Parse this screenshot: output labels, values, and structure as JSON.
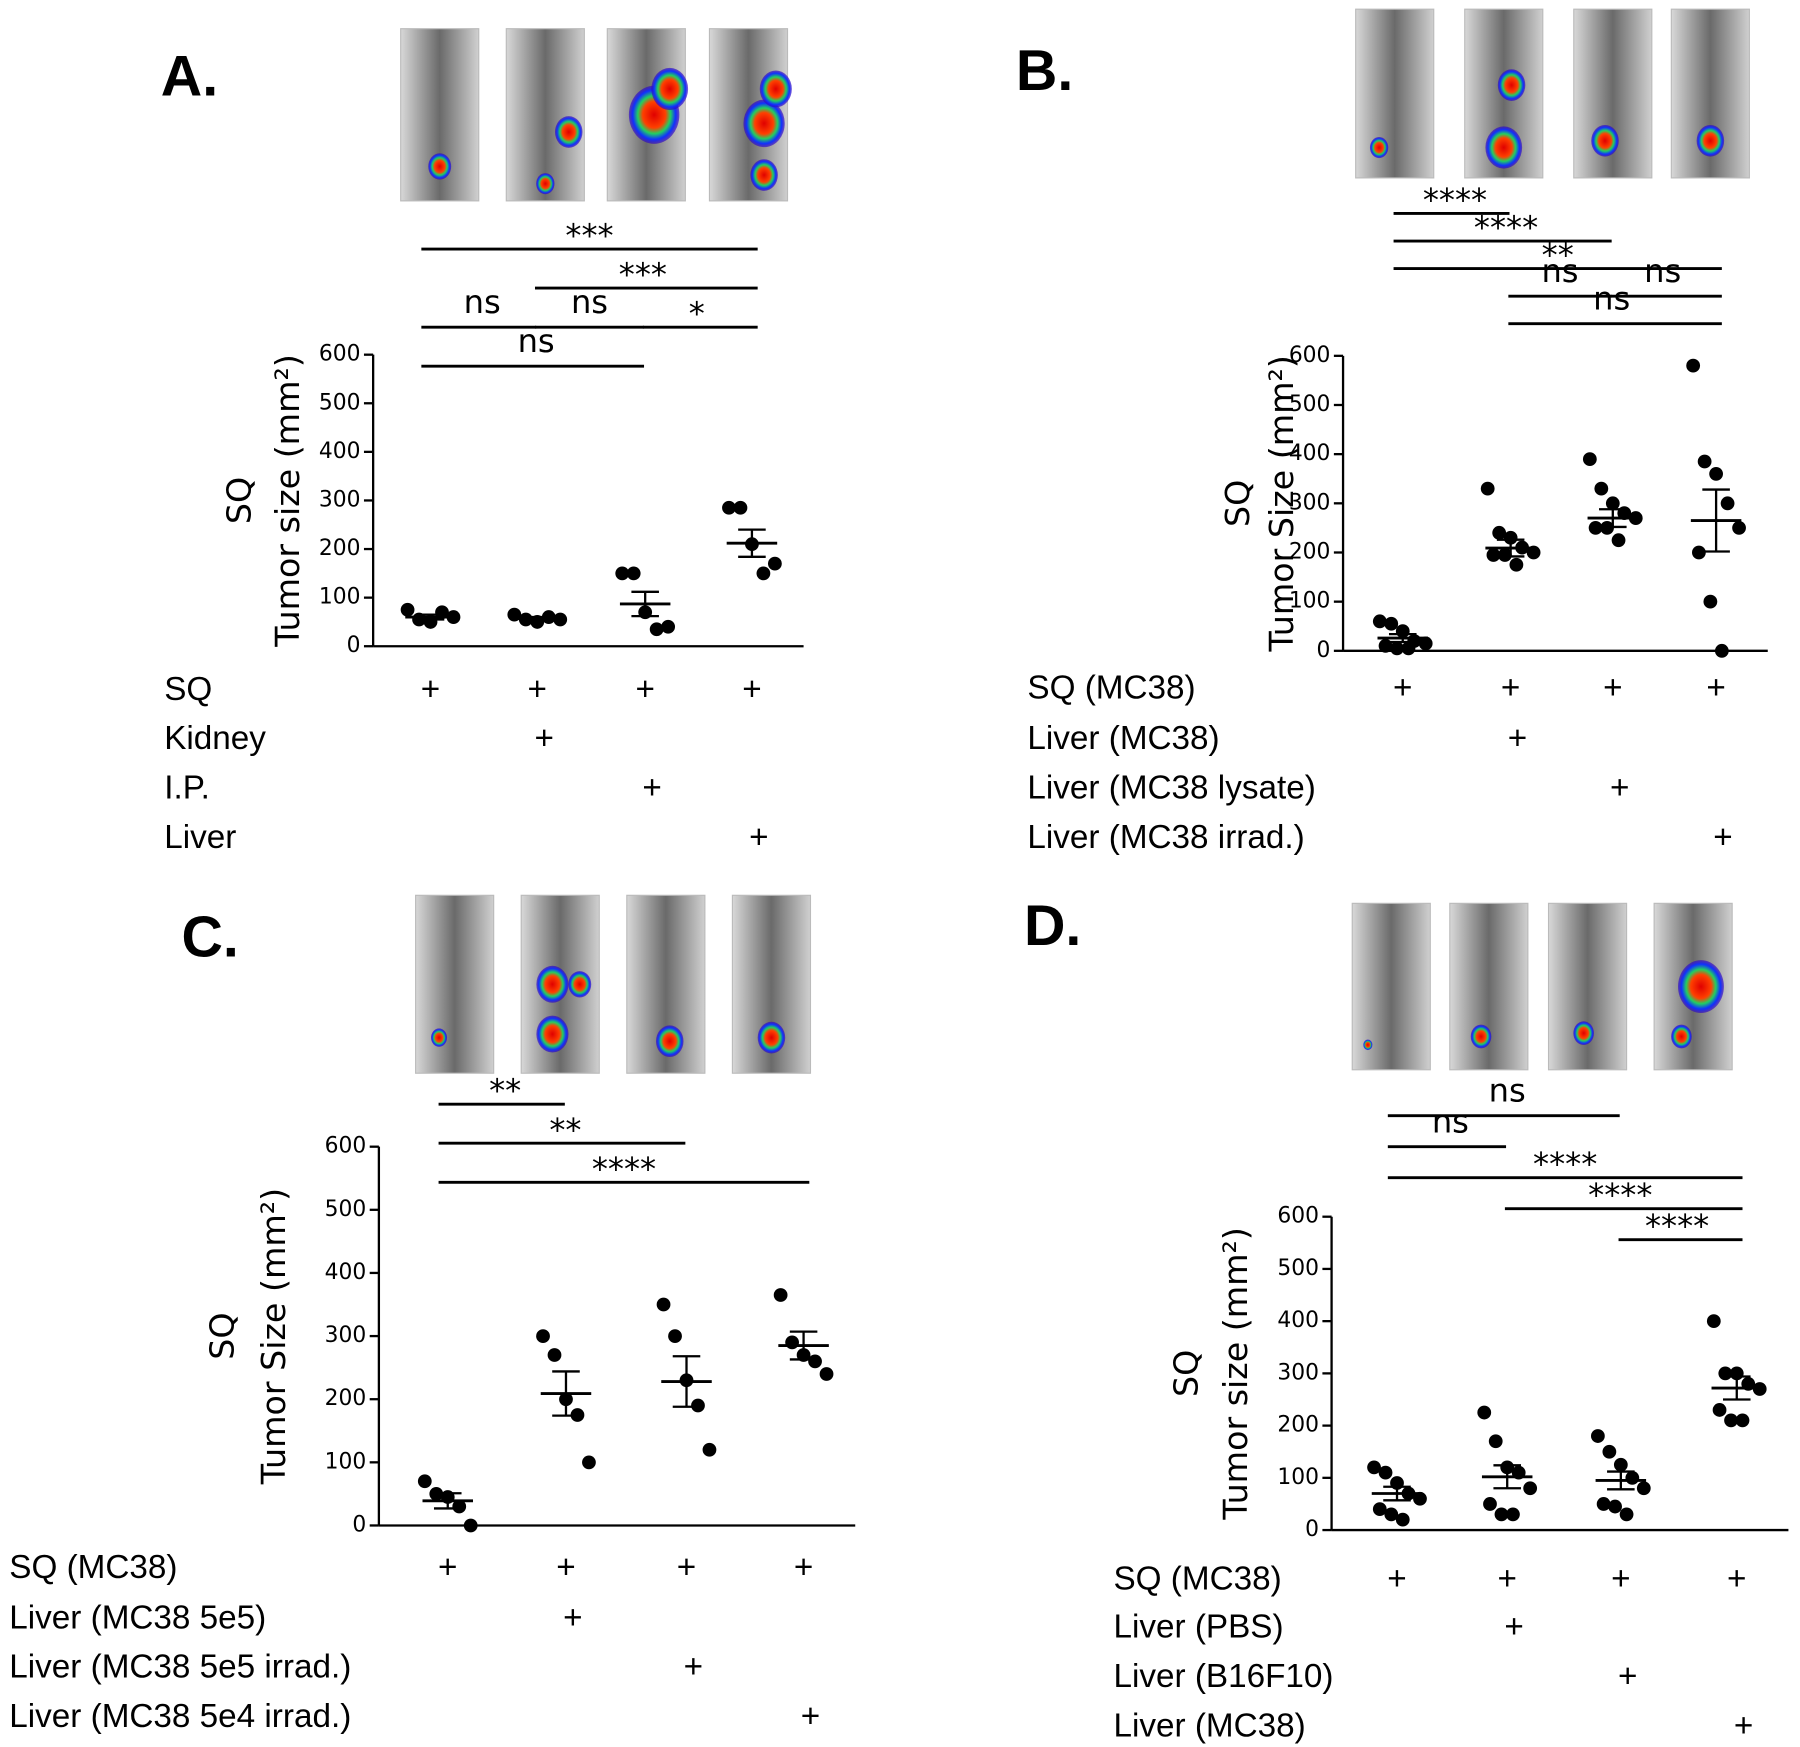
{
  "chart_data": [
    {
      "type": "dot",
      "panel_label": "A.",
      "y_label": "SQ",
      "y_label_2": "Tumor size (mm²)",
      "ylim": [
        0,
        600
      ],
      "yticks": [
        0,
        100,
        200,
        300,
        400,
        500,
        600
      ],
      "point_color": "#000000",
      "groups": [
        {
          "values": [
            75,
            55,
            50,
            70,
            60
          ],
          "mean": 60,
          "sem": 5
        },
        {
          "values": [
            65,
            55,
            50,
            60,
            55
          ],
          "mean": 57,
          "sem": 3
        },
        {
          "values": [
            150,
            150,
            70,
            35,
            40
          ],
          "mean": 87,
          "sem": 25
        },
        {
          "values": [
            285,
            285,
            210,
            150,
            170
          ],
          "mean": 212,
          "sem": 28
        }
      ],
      "brackets": [
        {
          "from": 0,
          "to": 3,
          "label": "***"
        },
        {
          "from": 1,
          "to": 3,
          "label": "***"
        },
        {
          "from": 2,
          "to": 3,
          "label": "*"
        },
        {
          "from": 0,
          "to": 1,
          "label": "ns"
        },
        {
          "from": 1,
          "to": 2,
          "label": "ns"
        },
        {
          "from": 0,
          "to": 2,
          "label": "ns"
        }
      ],
      "conditions": [
        {
          "label": "SQ",
          "cells": [
            "+",
            "+",
            "+",
            "+"
          ]
        },
        {
          "label": "Kidney",
          "cells": [
            null,
            "+",
            null,
            null
          ]
        },
        {
          "label": "I.P.",
          "cells": [
            null,
            null,
            "+",
            null
          ]
        },
        {
          "label": "Liver",
          "cells": [
            null,
            null,
            null,
            "+"
          ]
        }
      ]
    },
    {
      "type": "dot",
      "panel_label": "B.",
      "y_label": "SQ",
      "y_label_2": "Tumor Size (mm²)",
      "ylim": [
        0,
        600
      ],
      "yticks": [
        0,
        100,
        200,
        300,
        400,
        500,
        600
      ],
      "point_color": "#000000",
      "groups": [
        {
          "values": [
            60,
            55,
            40,
            20,
            15,
            10,
            5,
            5
          ],
          "mean": 26,
          "sem": 8
        },
        {
          "values": [
            330,
            240,
            230,
            210,
            200,
            195,
            195,
            175
          ],
          "mean": 209,
          "sem": 17
        },
        {
          "values": [
            390,
            330,
            300,
            280,
            270,
            250,
            250,
            225
          ],
          "mean": 270,
          "sem": 18
        },
        {
          "values": [
            580,
            385,
            360,
            300,
            250,
            200,
            100,
            0
          ],
          "mean": 265,
          "sem": 63
        }
      ],
      "brackets": [
        {
          "from": 0,
          "to": 1,
          "label": "****"
        },
        {
          "from": 0,
          "to": 2,
          "label": "****"
        },
        {
          "from": 0,
          "to": 3,
          "label": "**"
        },
        {
          "from": 1,
          "to": 2,
          "label": "ns"
        },
        {
          "from": 2,
          "to": 3,
          "label": "ns"
        },
        {
          "from": 1,
          "to": 3,
          "label": "ns"
        }
      ],
      "conditions": [
        {
          "label": "SQ (MC38)",
          "cells": [
            "+",
            "+",
            "+",
            "+"
          ]
        },
        {
          "label": "Liver (MC38)",
          "cells": [
            null,
            "+",
            null,
            null
          ]
        },
        {
          "label": "Liver (MC38 lysate)",
          "cells": [
            null,
            null,
            "+",
            null
          ]
        },
        {
          "label": "Liver (MC38 irrad.)",
          "cells": [
            null,
            null,
            null,
            "+"
          ]
        }
      ]
    },
    {
      "type": "dot",
      "panel_label": "C.",
      "y_label": "SQ",
      "y_label_2": "Tumor Size (mm²)",
      "ylim": [
        0,
        600
      ],
      "yticks": [
        0,
        100,
        200,
        300,
        400,
        500,
        600
      ],
      "point_color": "#000000",
      "groups": [
        {
          "values": [
            70,
            50,
            45,
            30,
            0
          ],
          "mean": 39,
          "sem": 12
        },
        {
          "values": [
            300,
            270,
            200,
            175,
            100
          ],
          "mean": 209,
          "sem": 35
        },
        {
          "values": [
            350,
            300,
            230,
            190,
            120
          ],
          "mean": 228,
          "sem": 40
        },
        {
          "values": [
            365,
            290,
            270,
            260,
            240
          ],
          "mean": 285,
          "sem": 22
        }
      ],
      "brackets": [
        {
          "from": 0,
          "to": 1,
          "label": "**"
        },
        {
          "from": 0,
          "to": 2,
          "label": "**"
        },
        {
          "from": 0,
          "to": 3,
          "label": "****"
        }
      ],
      "conditions": [
        {
          "label": "SQ (MC38)",
          "cells": [
            "+",
            "+",
            "+",
            "+"
          ]
        },
        {
          "label": "Liver (MC38 5e5)",
          "cells": [
            null,
            "+",
            null,
            null
          ]
        },
        {
          "label": "Liver (MC38 5e5 irrad.)",
          "cells": [
            null,
            null,
            "+",
            null
          ]
        },
        {
          "label": "Liver (MC38 5e4 irrad.)",
          "cells": [
            null,
            null,
            null,
            "+"
          ]
        }
      ]
    },
    {
      "type": "dot",
      "panel_label": "D.",
      "y_label": "SQ",
      "y_label_2": "Tumor size (mm²)",
      "ylim": [
        0,
        600
      ],
      "yticks": [
        0,
        100,
        200,
        300,
        400,
        500,
        600
      ],
      "point_color": "#000000",
      "groups": [
        {
          "values": [
            120,
            110,
            90,
            70,
            60,
            40,
            30,
            20
          ],
          "mean": 70,
          "sem": 13
        },
        {
          "values": [
            225,
            170,
            120,
            110,
            80,
            50,
            30,
            30
          ],
          "mean": 102,
          "sem": 22
        },
        {
          "values": [
            180,
            150,
            125,
            100,
            80,
            50,
            45,
            30
          ],
          "mean": 95,
          "sem": 17
        },
        {
          "values": [
            400,
            300,
            300,
            280,
            270,
            230,
            210,
            210
          ],
          "mean": 272,
          "sem": 22
        }
      ],
      "brackets": [
        {
          "from": 0,
          "to": 2,
          "label": "ns"
        },
        {
          "from": 0,
          "to": 1,
          "label": "ns"
        },
        {
          "from": 0,
          "to": 3,
          "label": "****"
        },
        {
          "from": 1,
          "to": 3,
          "label": "****"
        },
        {
          "from": 2,
          "to": 3,
          "label": "****"
        }
      ],
      "conditions": [
        {
          "label": "SQ (MC38)",
          "cells": [
            "+",
            "+",
            "+",
            "+"
          ]
        },
        {
          "label": "Liver (PBS)",
          "cells": [
            null,
            "+",
            null,
            null
          ]
        },
        {
          "label": "Liver (B16F10)",
          "cells": [
            null,
            null,
            "+",
            null
          ]
        },
        {
          "label": "Liver (MC38)",
          "cells": [
            null,
            null,
            null,
            "+"
          ]
        }
      ]
    }
  ]
}
